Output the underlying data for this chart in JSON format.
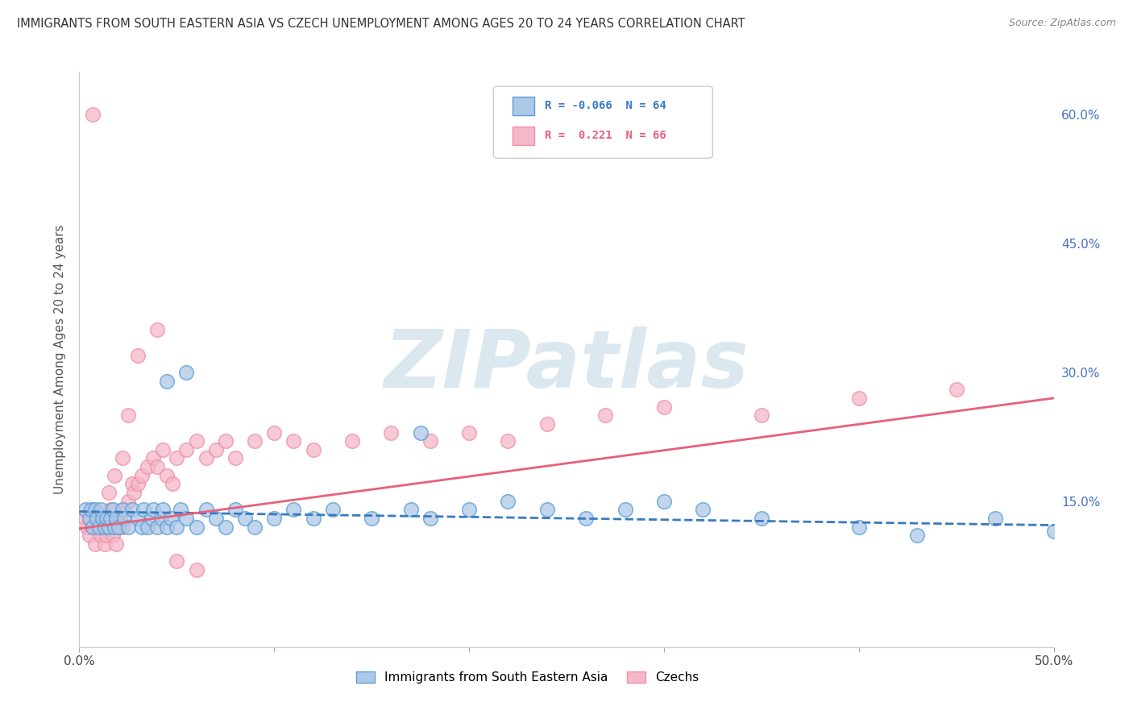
{
  "title": "IMMIGRANTS FROM SOUTH EASTERN ASIA VS CZECH UNEMPLOYMENT AMONG AGES 20 TO 24 YEARS CORRELATION CHART",
  "source": "Source: ZipAtlas.com",
  "ylabel": "Unemployment Among Ages 20 to 24 years",
  "xlim": [
    0.0,
    0.5
  ],
  "ylim": [
    -0.02,
    0.65
  ],
  "xticks": [
    0.0,
    0.1,
    0.2,
    0.3,
    0.4,
    0.5
  ],
  "xticklabels": [
    "0.0%",
    "",
    "",
    "",
    "",
    "50.0%"
  ],
  "yticks_right": [
    0.15,
    0.3,
    0.45,
    0.6
  ],
  "yticklabels_right": [
    "15.0%",
    "30.0%",
    "45.0%",
    "60.0%"
  ],
  "legend_r1": "-0.066",
  "legend_n1": "64",
  "legend_r2": "0.221",
  "legend_n2": "66",
  "color_blue": "#aec8e8",
  "color_pink": "#f4b8c8",
  "color_blue_line": "#3a7abf",
  "color_pink_line": "#e8607a",
  "color_blue_edge": "#5a9fd4",
  "color_pink_edge": "#f090a8",
  "watermark_text": "ZIPatlas",
  "watermark_color": "#dce8f0",
  "blue_scatter_x": [
    0.003,
    0.005,
    0.006,
    0.007,
    0.008,
    0.009,
    0.01,
    0.011,
    0.012,
    0.013,
    0.014,
    0.015,
    0.016,
    0.017,
    0.018,
    0.019,
    0.02,
    0.022,
    0.023,
    0.025,
    0.027,
    0.03,
    0.032,
    0.033,
    0.035,
    0.037,
    0.038,
    0.04,
    0.042,
    0.043,
    0.045,
    0.047,
    0.05,
    0.052,
    0.055,
    0.06,
    0.065,
    0.07,
    0.075,
    0.08,
    0.085,
    0.09,
    0.1,
    0.11,
    0.12,
    0.13,
    0.15,
    0.17,
    0.18,
    0.2,
    0.22,
    0.24,
    0.26,
    0.28,
    0.3,
    0.32,
    0.35,
    0.4,
    0.43,
    0.47,
    0.5,
    0.045,
    0.055,
    0.175
  ],
  "blue_scatter_y": [
    0.14,
    0.13,
    0.14,
    0.12,
    0.14,
    0.13,
    0.12,
    0.14,
    0.13,
    0.12,
    0.13,
    0.12,
    0.13,
    0.14,
    0.12,
    0.13,
    0.12,
    0.14,
    0.13,
    0.12,
    0.14,
    0.13,
    0.12,
    0.14,
    0.12,
    0.13,
    0.14,
    0.12,
    0.13,
    0.14,
    0.12,
    0.13,
    0.12,
    0.14,
    0.13,
    0.12,
    0.14,
    0.13,
    0.12,
    0.14,
    0.13,
    0.12,
    0.13,
    0.14,
    0.13,
    0.14,
    0.13,
    0.14,
    0.13,
    0.14,
    0.15,
    0.14,
    0.13,
    0.14,
    0.15,
    0.14,
    0.13,
    0.12,
    0.11,
    0.13,
    0.115,
    0.29,
    0.3,
    0.23
  ],
  "pink_scatter_x": [
    0.003,
    0.004,
    0.005,
    0.006,
    0.007,
    0.008,
    0.009,
    0.01,
    0.011,
    0.012,
    0.013,
    0.014,
    0.015,
    0.016,
    0.017,
    0.018,
    0.019,
    0.02,
    0.021,
    0.022,
    0.023,
    0.025,
    0.027,
    0.028,
    0.03,
    0.032,
    0.035,
    0.038,
    0.04,
    0.043,
    0.045,
    0.048,
    0.05,
    0.055,
    0.06,
    0.065,
    0.07,
    0.075,
    0.08,
    0.09,
    0.1,
    0.11,
    0.12,
    0.14,
    0.16,
    0.18,
    0.2,
    0.22,
    0.24,
    0.27,
    0.3,
    0.35,
    0.4,
    0.45,
    0.007,
    0.009,
    0.012,
    0.015,
    0.018,
    0.022,
    0.025,
    0.03,
    0.04,
    0.05,
    0.06,
    0.007
  ],
  "pink_scatter_y": [
    0.13,
    0.12,
    0.11,
    0.13,
    0.12,
    0.1,
    0.12,
    0.13,
    0.11,
    0.12,
    0.1,
    0.11,
    0.13,
    0.14,
    0.11,
    0.13,
    0.1,
    0.12,
    0.13,
    0.12,
    0.14,
    0.15,
    0.17,
    0.16,
    0.17,
    0.18,
    0.19,
    0.2,
    0.19,
    0.21,
    0.18,
    0.17,
    0.2,
    0.21,
    0.22,
    0.2,
    0.21,
    0.22,
    0.2,
    0.22,
    0.23,
    0.22,
    0.21,
    0.22,
    0.23,
    0.22,
    0.23,
    0.22,
    0.24,
    0.25,
    0.26,
    0.25,
    0.27,
    0.28,
    0.14,
    0.13,
    0.12,
    0.16,
    0.18,
    0.2,
    0.25,
    0.32,
    0.35,
    0.08,
    0.07,
    0.6
  ],
  "blue_trend_x": [
    0.0,
    0.5
  ],
  "blue_trend_y": [
    0.138,
    0.122
  ],
  "pink_trend_x": [
    0.0,
    0.5
  ],
  "pink_trend_y": [
    0.118,
    0.27
  ],
  "background_color": "#ffffff",
  "grid_color": "#cccccc"
}
